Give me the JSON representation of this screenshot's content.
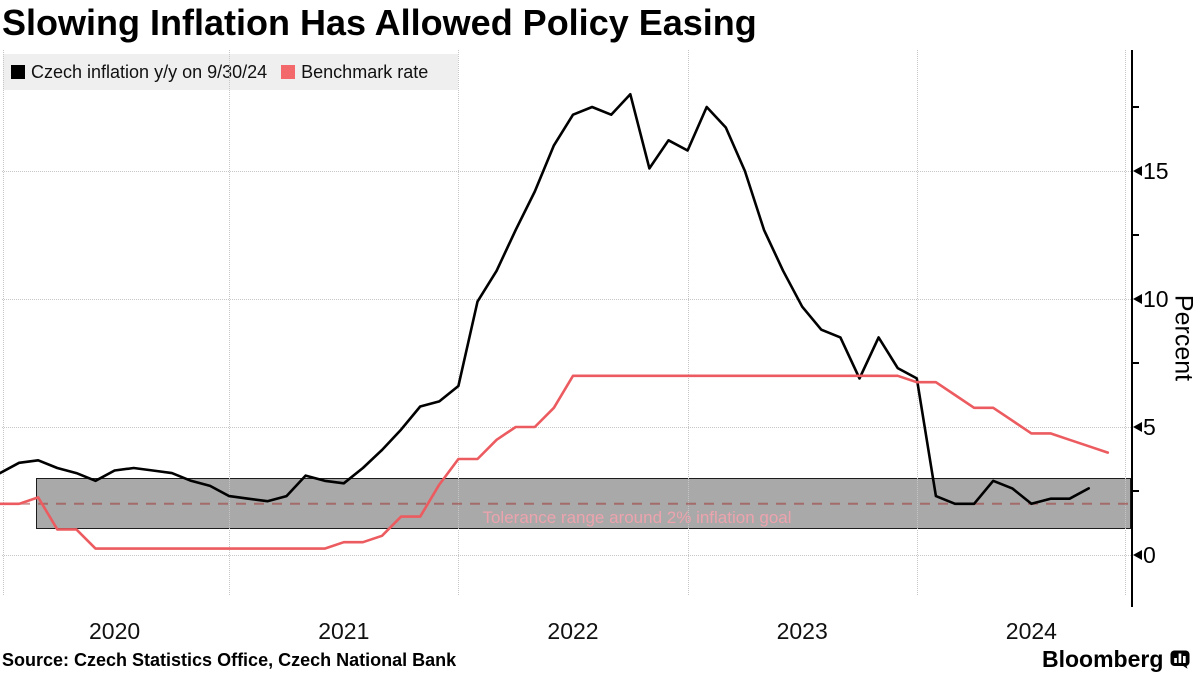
{
  "title": "Slowing Inflation Has Allowed Policy Easing",
  "legend": {
    "items": [
      {
        "label": "Czech inflation y/y on 9/30/24",
        "color": "#000000"
      },
      {
        "label": "Benchmark rate",
        "color": "#f2686b"
      }
    ]
  },
  "chart_data": {
    "type": "line",
    "title": "Slowing Inflation Has Allowed Policy Easing",
    "xlabel": "",
    "ylabel": "Percent",
    "ylim": [
      -1.5,
      19.6
    ],
    "y_ticks": [
      0,
      5,
      10,
      15
    ],
    "y_minor_ticks": [
      2.5,
      7.5,
      12.5,
      17.5
    ],
    "grid": "dotted",
    "legend_position": "top-left",
    "x_unit": "months since 2019-12 (monthly points plotted at month end)",
    "x_year_labels": [
      {
        "label": "2020",
        "month": 6
      },
      {
        "label": "2021",
        "month": 18
      },
      {
        "label": "2022",
        "month": 30
      },
      {
        "label": "2023",
        "month": 42
      },
      {
        "label": "2024",
        "month": 54
      }
    ],
    "x_gridline_months": [
      0.16,
      12,
      24,
      36,
      48,
      58.9
    ],
    "series": [
      {
        "name": "Czech inflation y/y on 9/30/24",
        "color": "#000000",
        "start_month": 0,
        "values": [
          3.2,
          3.6,
          3.7,
          3.4,
          3.2,
          2.9,
          3.3,
          3.4,
          3.3,
          3.2,
          2.9,
          2.7,
          2.3,
          2.2,
          2.1,
          2.3,
          3.1,
          2.9,
          2.8,
          3.4,
          4.1,
          4.9,
          5.8,
          6.0,
          6.6,
          9.9,
          11.1,
          12.7,
          14.2,
          16.0,
          17.2,
          17.5,
          17.2,
          18.0,
          15.1,
          16.2,
          15.8,
          17.5,
          16.7,
          15.0,
          12.7,
          11.1,
          9.7,
          8.8,
          8.5,
          6.9,
          8.5,
          7.3,
          6.9,
          2.3,
          2.0,
          2.0,
          2.9,
          2.6,
          2.0,
          2.2,
          2.2,
          2.6
        ]
      },
      {
        "name": "Benchmark rate",
        "color": "#ec5b5f",
        "start_month": 0,
        "values": [
          2.0,
          2.0,
          2.25,
          1.0,
          1.0,
          0.25,
          0.25,
          0.25,
          0.25,
          0.25,
          0.25,
          0.25,
          0.25,
          0.25,
          0.25,
          0.25,
          0.25,
          0.25,
          0.5,
          0.5,
          0.75,
          1.5,
          1.5,
          2.75,
          3.75,
          3.75,
          4.5,
          5.0,
          5.0,
          5.75,
          7.0,
          7.0,
          7.0,
          7.0,
          7.0,
          7.0,
          7.0,
          7.0,
          7.0,
          7.0,
          7.0,
          7.0,
          7.0,
          7.0,
          7.0,
          7.0,
          7.0,
          7.0,
          6.75,
          6.75,
          6.25,
          5.75,
          5.75,
          5.25,
          4.75,
          4.75,
          4.5,
          4.25,
          4.0
        ]
      }
    ],
    "band": {
      "label": "Tolerance range around 2% inflation goal",
      "from": 1,
      "to": 3,
      "start_month": 1.9,
      "goal_line": 2,
      "fill": "#a9a9a9",
      "label_color": "#eda3ad"
    }
  },
  "source": "Source: Czech Statistics Office, Czech National Bank",
  "brand": {
    "name": "Bloomberg"
  }
}
